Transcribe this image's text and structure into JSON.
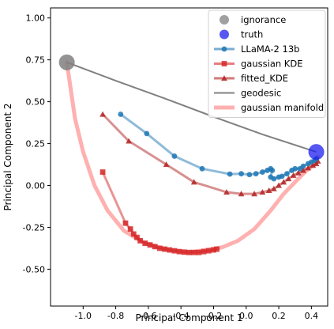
{
  "chart_data": {
    "type": "scatter",
    "title": "",
    "xlabel": "Principal Component 1",
    "ylabel": "Principal Component 2",
    "xlim": [
      -1.2,
      0.5
    ],
    "ylim": [
      -0.72,
      1.06
    ],
    "xticks": [
      -1.0,
      -0.8,
      -0.6,
      -0.4,
      -0.2,
      0.0,
      0.2,
      0.4
    ],
    "xtick_labels": [
      "-1.0",
      "-0.8",
      "-0.6",
      "-0.4",
      "-0.2",
      "0.0",
      "0.2",
      "0.4"
    ],
    "yticks": [
      -0.5,
      -0.25,
      0.0,
      0.25,
      0.5,
      0.75,
      1.0
    ],
    "ytick_labels": [
      "-0.50",
      "-0.25",
      "0.00",
      "0.25",
      "0.50",
      "0.75",
      "1.00"
    ],
    "grid": false,
    "legend_position": "top-right",
    "series": [
      {
        "name": "ignorance",
        "kind": "point",
        "color": "#808080",
        "points": [
          [
            -1.1,
            0.735
          ]
        ]
      },
      {
        "name": "truth",
        "kind": "point",
        "color": "#1f1fef",
        "points": [
          [
            0.43,
            0.2
          ]
        ]
      },
      {
        "name": "LLaMA-2 13b",
        "kind": "line-marker",
        "marker": "circle",
        "color": "#1f77b4",
        "points": [
          [
            -0.77,
            0.425
          ],
          [
            -0.61,
            0.31
          ],
          [
            -0.44,
            0.175
          ],
          [
            -0.27,
            0.1
          ],
          [
            -0.1,
            0.068
          ],
          [
            -0.03,
            0.07
          ],
          [
            0.02,
            0.065
          ],
          [
            0.06,
            0.07
          ],
          [
            0.1,
            0.08
          ],
          [
            0.13,
            0.09
          ],
          [
            0.15,
            0.1
          ],
          [
            0.16,
            0.09
          ],
          [
            0.15,
            0.05
          ],
          [
            0.17,
            0.04
          ],
          [
            0.2,
            0.05
          ],
          [
            0.22,
            0.055
          ],
          [
            0.25,
            0.07
          ],
          [
            0.28,
            0.09
          ],
          [
            0.3,
            0.1
          ],
          [
            0.33,
            0.1
          ],
          [
            0.35,
            0.115
          ],
          [
            0.38,
            0.13
          ],
          [
            0.4,
            0.14
          ],
          [
            0.42,
            0.15
          ],
          [
            0.43,
            0.16
          ]
        ]
      },
      {
        "name": "gaussian KDE",
        "kind": "line-marker",
        "marker": "square",
        "color": "#d62728",
        "points": [
          [
            -0.88,
            0.08
          ],
          [
            -0.74,
            -0.225
          ],
          [
            -0.71,
            -0.26
          ],
          [
            -0.69,
            -0.29
          ],
          [
            -0.67,
            -0.31
          ],
          [
            -0.65,
            -0.33
          ],
          [
            -0.62,
            -0.345
          ],
          [
            -0.59,
            -0.355
          ],
          [
            -0.56,
            -0.365
          ],
          [
            -0.53,
            -0.375
          ],
          [
            -0.5,
            -0.38
          ],
          [
            -0.47,
            -0.385
          ],
          [
            -0.44,
            -0.39
          ],
          [
            -0.41,
            -0.395
          ],
          [
            -0.38,
            -0.398
          ],
          [
            -0.35,
            -0.4
          ],
          [
            -0.32,
            -0.4
          ],
          [
            -0.29,
            -0.4
          ],
          [
            -0.26,
            -0.395
          ],
          [
            -0.23,
            -0.39
          ],
          [
            -0.2,
            -0.385
          ],
          [
            -0.18,
            -0.38
          ]
        ]
      },
      {
        "name": "fitted_KDE",
        "kind": "line-marker",
        "marker": "triangle",
        "color": "#b22222",
        "points": [
          [
            -0.88,
            0.425
          ],
          [
            -0.72,
            0.265
          ],
          [
            -0.49,
            0.125
          ],
          [
            -0.32,
            0.02
          ],
          [
            -0.12,
            -0.04
          ],
          [
            -0.03,
            -0.05
          ],
          [
            0.05,
            -0.05
          ],
          [
            0.1,
            -0.04
          ],
          [
            0.14,
            -0.03
          ],
          [
            0.17,
            -0.02
          ],
          [
            0.2,
            0.0
          ],
          [
            0.23,
            0.02
          ],
          [
            0.26,
            0.04
          ],
          [
            0.29,
            0.06
          ],
          [
            0.32,
            0.075
          ],
          [
            0.35,
            0.09
          ],
          [
            0.38,
            0.105
          ],
          [
            0.41,
            0.12
          ],
          [
            0.43,
            0.13
          ],
          [
            0.44,
            0.145
          ]
        ]
      },
      {
        "name": "geodesic",
        "kind": "line",
        "color": "#808080",
        "points": [
          [
            -1.1,
            0.735
          ],
          [
            -0.8,
            0.625
          ],
          [
            -0.5,
            0.52
          ],
          [
            -0.2,
            0.41
          ],
          [
            0.1,
            0.305
          ],
          [
            0.43,
            0.2
          ]
        ]
      },
      {
        "name": "gaussian manifold",
        "kind": "line",
        "color": "#ffb0b0",
        "points": [
          [
            -1.1,
            0.735
          ],
          [
            -1.08,
            0.6
          ],
          [
            -1.05,
            0.4
          ],
          [
            -1.0,
            0.2
          ],
          [
            -0.93,
            0.0
          ],
          [
            -0.85,
            -0.15
          ],
          [
            -0.75,
            -0.27
          ],
          [
            -0.63,
            -0.34
          ],
          [
            -0.5,
            -0.38
          ],
          [
            -0.35,
            -0.4
          ],
          [
            -0.15,
            -0.37
          ],
          [
            -0.05,
            -0.33
          ],
          [
            0.05,
            -0.26
          ],
          [
            0.15,
            -0.15
          ],
          [
            0.23,
            -0.05
          ],
          [
            0.3,
            0.02
          ],
          [
            0.36,
            0.08
          ],
          [
            0.41,
            0.12
          ],
          [
            0.43,
            0.15
          ],
          [
            0.44,
            0.17
          ]
        ]
      }
    ]
  }
}
